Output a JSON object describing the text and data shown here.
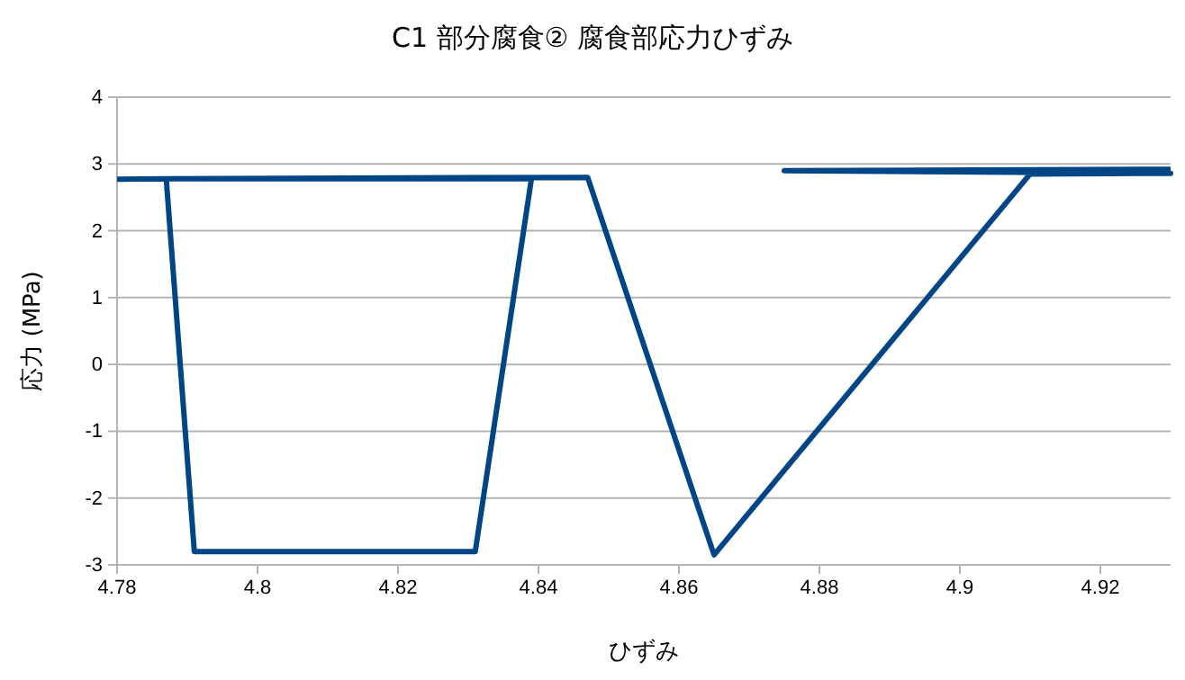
{
  "chart_data": {
    "type": "line",
    "title": "C1  部分腐食② 腐食部応力ひずみ",
    "xlabel": "ひずみ",
    "ylabel": "応力 (MPa)",
    "x": [
      4.78,
      4.787,
      4.791,
      4.831,
      4.839,
      4.787,
      4.847,
      4.865,
      4.91,
      4.93,
      4.875,
      4.93
    ],
    "series": [
      {
        "color": "#004586",
        "values": [
          2.77,
          2.78,
          -2.8,
          -2.8,
          2.78,
          2.78,
          2.8,
          -2.85,
          2.85,
          2.86,
          2.9,
          2.92
        ]
      }
    ],
    "xlim": [
      4.78,
      4.93
    ],
    "xticks": [
      {
        "value": 4.78,
        "label": "4.78"
      },
      {
        "value": 4.8,
        "label": "4.8"
      },
      {
        "value": 4.82,
        "label": "4.82"
      },
      {
        "value": 4.84,
        "label": "4.84"
      },
      {
        "value": 4.86,
        "label": "4.86"
      },
      {
        "value": 4.88,
        "label": "4.88"
      },
      {
        "value": 4.9,
        "label": "4.9"
      },
      {
        "value": 4.92,
        "label": "4.92"
      }
    ],
    "ylim": [
      -3,
      4
    ],
    "yticks": [
      -3,
      -2,
      -1,
      0,
      1,
      2,
      3,
      4
    ],
    "grid": "y",
    "marker": "none",
    "line_style": "solid"
  }
}
